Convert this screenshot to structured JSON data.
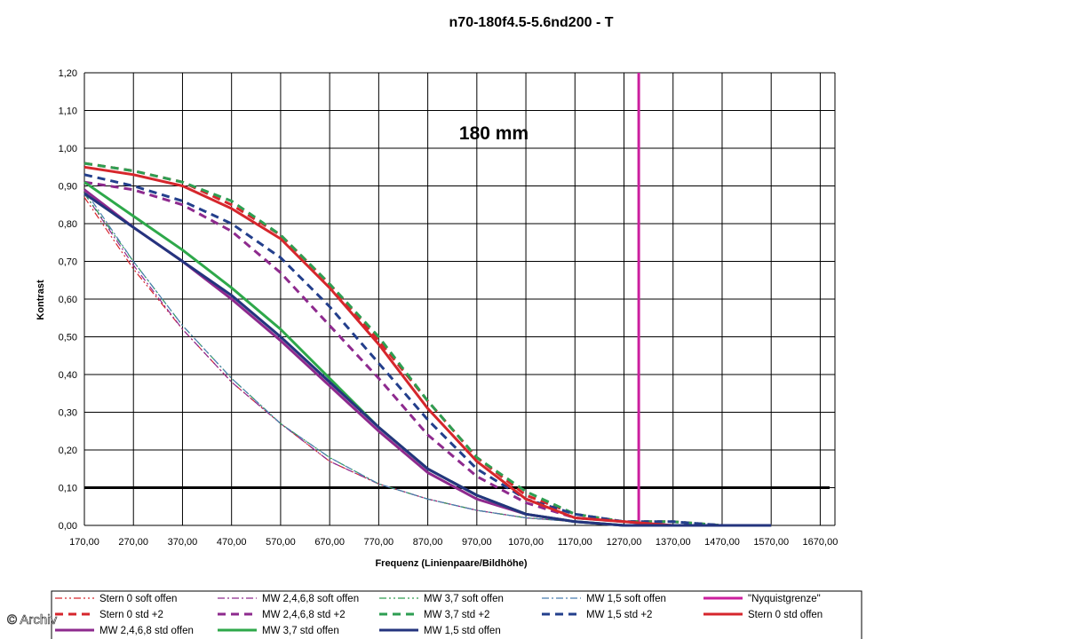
{
  "watermark": "© Archiv",
  "chart_data": {
    "type": "line",
    "title": "n70-180f4.5-5.6nd200 - T",
    "annotation": "180 mm",
    "xlabel": "Frequenz (Linienpaare/Bildhöhe)",
    "ylabel": "Kontrast",
    "xlim": [
      170,
      1700
    ],
    "ylim": [
      0,
      1.2
    ],
    "x_ticks": [
      "170,00",
      "270,00",
      "370,00",
      "470,00",
      "570,00",
      "670,00",
      "770,00",
      "870,00",
      "970,00",
      "1070,00",
      "1170,00",
      "1270,00",
      "1370,00",
      "1470,00",
      "1570,00",
      "1670,00"
    ],
    "y_ticks": [
      "0,00",
      "0,10",
      "0,20",
      "0,30",
      "0,40",
      "0,50",
      "0,60",
      "0,70",
      "0,80",
      "0,90",
      "1,00",
      "1,10",
      "1,20"
    ],
    "grid": true,
    "legend_position": "bottom",
    "reference_lines": [
      {
        "name": "\"Nyquistgrenze\"",
        "orientation": "vertical",
        "value": 1300,
        "color": "#cc1f9e"
      },
      {
        "name": "",
        "orientation": "horizontal",
        "value": 0.1,
        "color": "#000000"
      }
    ],
    "series": [
      {
        "name": "Stern 0 soft offen",
        "color": "#d6262c",
        "style": "dashdotdot",
        "width": 1.2,
        "x": [
          170,
          270,
          370,
          470,
          570,
          670,
          770,
          870,
          970,
          1070,
          1170,
          1270
        ],
        "y": [
          0.87,
          0.68,
          0.52,
          0.38,
          0.27,
          0.17,
          0.11,
          0.07,
          0.04,
          0.02,
          0.01,
          0.0
        ]
      },
      {
        "name": "MW 2,4,6,8 soft offen",
        "color": "#8e2a8e",
        "style": "dashdot",
        "width": 1.2,
        "x": [
          170,
          270,
          370,
          470,
          570,
          670,
          770,
          870,
          970,
          1070,
          1170,
          1270
        ],
        "y": [
          0.88,
          0.69,
          0.52,
          0.38,
          0.27,
          0.17,
          0.11,
          0.07,
          0.04,
          0.02,
          0.01,
          0.0
        ]
      },
      {
        "name": "MW 3,7 soft offen",
        "color": "#2e9e52",
        "style": "dashdotdot",
        "width": 1.2,
        "x": [
          170,
          270,
          370,
          470,
          570,
          670,
          770,
          870,
          970,
          1070,
          1170,
          1270
        ],
        "y": [
          0.88,
          0.7,
          0.53,
          0.39,
          0.27,
          0.18,
          0.11,
          0.07,
          0.04,
          0.02,
          0.01,
          0.0
        ]
      },
      {
        "name": "MW 1,5 soft offen",
        "color": "#4a7eb0",
        "style": "dashdot",
        "width": 1.2,
        "x": [
          170,
          270,
          370,
          470,
          570,
          670,
          770,
          870,
          970,
          1070,
          1170,
          1270
        ],
        "y": [
          0.89,
          0.7,
          0.53,
          0.39,
          0.27,
          0.18,
          0.11,
          0.07,
          0.04,
          0.02,
          0.01,
          0.0
        ]
      },
      {
        "name": "\"Nyquistgrenze\"",
        "color": "#cc1f9e",
        "style": "solid",
        "width": 3,
        "x": [
          1300,
          1300
        ],
        "y": [
          0,
          1.2
        ]
      },
      {
        "name": "Stern 0 std +2",
        "color": "#d6262c",
        "style": "dash",
        "width": 3,
        "x": [
          170,
          270,
          370,
          470,
          570,
          670,
          770,
          870,
          970,
          1070,
          1170,
          1270,
          1370,
          1470,
          1570
        ],
        "y": [
          0.96,
          0.94,
          0.91,
          0.85,
          0.77,
          0.64,
          0.49,
          0.33,
          0.18,
          0.08,
          0.03,
          0.01,
          0.01,
          0.0,
          0.0
        ]
      },
      {
        "name": "MW 2,4,6,8 std +2",
        "color": "#8e2a8e",
        "style": "dash",
        "width": 3,
        "x": [
          170,
          270,
          370,
          470,
          570,
          670,
          770,
          870,
          970,
          1070,
          1170,
          1270,
          1370,
          1470,
          1570
        ],
        "y": [
          0.91,
          0.89,
          0.85,
          0.78,
          0.67,
          0.53,
          0.39,
          0.24,
          0.13,
          0.06,
          0.02,
          0.01,
          0.0,
          0.0,
          0.0
        ]
      },
      {
        "name": "MW 3,7 std +2",
        "color": "#2e9e52",
        "style": "dash",
        "width": 3,
        "x": [
          170,
          270,
          370,
          470,
          570,
          670,
          770,
          870,
          970,
          1070,
          1170,
          1270,
          1370,
          1470,
          1570
        ],
        "y": [
          0.96,
          0.94,
          0.91,
          0.86,
          0.77,
          0.64,
          0.5,
          0.33,
          0.18,
          0.09,
          0.03,
          0.01,
          0.01,
          0.0,
          0.0
        ]
      },
      {
        "name": "MW 1,5 std +2",
        "color": "#233f8c",
        "style": "dash",
        "width": 3,
        "x": [
          170,
          270,
          370,
          470,
          570,
          670,
          770,
          870,
          970,
          1070,
          1170,
          1270,
          1370,
          1470,
          1570
        ],
        "y": [
          0.93,
          0.9,
          0.86,
          0.8,
          0.71,
          0.58,
          0.43,
          0.28,
          0.15,
          0.07,
          0.03,
          0.01,
          0.01,
          0.0,
          0.0
        ]
      },
      {
        "name": "Stern 0 std offen",
        "color": "#d6262c",
        "style": "solid",
        "width": 3,
        "x": [
          170,
          270,
          370,
          470,
          570,
          670,
          770,
          870,
          970,
          1070,
          1170,
          1270,
          1370,
          1470,
          1570
        ],
        "y": [
          0.95,
          0.93,
          0.9,
          0.84,
          0.76,
          0.63,
          0.48,
          0.31,
          0.17,
          0.07,
          0.02,
          0.01,
          0.0,
          0.0,
          0.0
        ]
      },
      {
        "name": "MW 2,4,6,8 std offen",
        "color": "#8e2a8e",
        "style": "solid",
        "width": 3,
        "x": [
          170,
          270,
          370,
          470,
          570,
          670,
          770,
          870,
          970,
          1070,
          1170,
          1270,
          1370,
          1470,
          1570
        ],
        "y": [
          0.89,
          0.79,
          0.7,
          0.6,
          0.49,
          0.37,
          0.25,
          0.14,
          0.07,
          0.03,
          0.01,
          0.0,
          0.0,
          0.0,
          0.0
        ]
      },
      {
        "name": "MW 3,7 std offen",
        "color": "#2ea84a",
        "style": "solid",
        "width": 3,
        "x": [
          170,
          270,
          370,
          470,
          570,
          670,
          770,
          870,
          970,
          1070,
          1170,
          1270,
          1370,
          1470,
          1570
        ],
        "y": [
          0.91,
          0.82,
          0.73,
          0.63,
          0.52,
          0.39,
          0.26,
          0.15,
          0.08,
          0.03,
          0.01,
          0.0,
          0.0,
          0.0,
          0.0
        ]
      },
      {
        "name": "MW 1,5 std offen",
        "color": "#24347e",
        "style": "solid",
        "width": 3,
        "x": [
          170,
          270,
          370,
          470,
          570,
          670,
          770,
          870,
          970,
          1070,
          1170,
          1270,
          1370,
          1470,
          1570
        ],
        "y": [
          0.88,
          0.79,
          0.7,
          0.61,
          0.5,
          0.38,
          0.26,
          0.15,
          0.08,
          0.03,
          0.01,
          0.0,
          0.0,
          0.0,
          0.0
        ]
      }
    ]
  }
}
